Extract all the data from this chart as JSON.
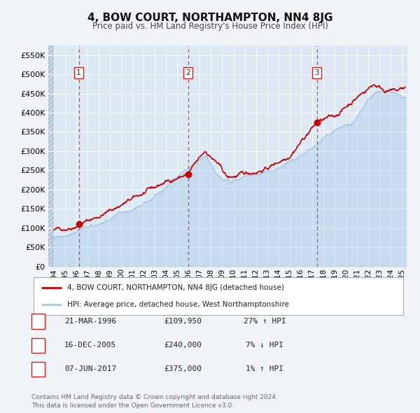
{
  "title": "4, BOW COURT, NORTHAMPTON, NN4 8JG",
  "subtitle": "Price paid vs. HM Land Registry's House Price Index (HPI)",
  "background_color": "#f0f4f8",
  "plot_bg_color": "#dde8f5",
  "legend_line1": "4, BOW COURT, NORTHAMPTON, NN4 8JG (detached house)",
  "legend_line2": "HPI: Average price, detached house, West Northamptonshire",
  "footer": "Contains HM Land Registry data © Crown copyright and database right 2024.\nThis data is licensed under the Open Government Licence v3.0.",
  "transactions": [
    {
      "num": 1,
      "date": "21-MAR-1996",
      "price": 109950,
      "pct": "27%",
      "dir": "↑",
      "year": 1996.22
    },
    {
      "num": 2,
      "date": "16-DEC-2005",
      "price": 240000,
      "pct": "7%",
      "dir": "↓",
      "year": 2005.96
    },
    {
      "num": 3,
      "date": "07-JUN-2017",
      "price": 375000,
      "pct": "1%",
      "dir": "↑",
      "year": 2017.44
    }
  ],
  "hpi_color": "#a8c8e8",
  "price_color": "#cc0000",
  "marker_color": "#cc0000",
  "vline_color": "#dd4444",
  "ylim": [
    0,
    575000
  ],
  "yticks": [
    0,
    50000,
    100000,
    150000,
    200000,
    250000,
    300000,
    350000,
    400000,
    450000,
    500000,
    550000
  ],
  "xlim_start": 1993.5,
  "xlim_end": 2025.5,
  "data_start": 1994.0,
  "xticks": [
    1994,
    1995,
    1996,
    1997,
    1998,
    1999,
    2000,
    2001,
    2002,
    2003,
    2004,
    2005,
    2006,
    2007,
    2008,
    2009,
    2010,
    2011,
    2012,
    2013,
    2014,
    2015,
    2016,
    2017,
    2018,
    2019,
    2020,
    2021,
    2022,
    2023,
    2024,
    2025
  ]
}
